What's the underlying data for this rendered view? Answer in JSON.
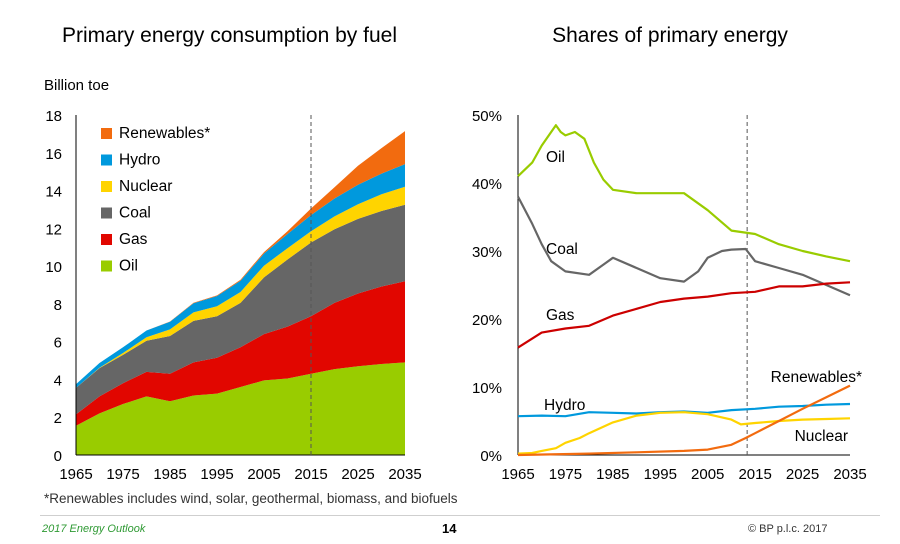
{
  "chart_data": [
    {
      "type": "area",
      "title": "Primary energy consumption by fuel",
      "ylabel": "Billion toe",
      "stacked": true,
      "x": [
        1965,
        1970,
        1975,
        1980,
        1985,
        1990,
        1995,
        2000,
        2005,
        2010,
        2015,
        2020,
        2025,
        2030,
        2035
      ],
      "xticks": [
        1965,
        1975,
        1985,
        1995,
        2005,
        2015,
        2025,
        2035
      ],
      "xlim": [
        1965,
        2035
      ],
      "yticks": [
        0,
        2,
        4,
        6,
        8,
        10,
        12,
        14,
        16,
        18
      ],
      "ylim": [
        0,
        18
      ],
      "projection_start": 2015,
      "legend_position": "top-left",
      "series": [
        {
          "name": "Oil",
          "color": "#99cc00",
          "values": [
            1.55,
            2.2,
            2.7,
            3.1,
            2.85,
            3.15,
            3.25,
            3.6,
            3.95,
            4.05,
            4.3,
            4.55,
            4.7,
            4.82,
            4.9
          ]
        },
        {
          "name": "Gas",
          "color": "#e10600",
          "values": [
            0.6,
            0.9,
            1.1,
            1.3,
            1.45,
            1.75,
            1.9,
            2.1,
            2.45,
            2.75,
            3.05,
            3.5,
            3.85,
            4.1,
            4.3
          ]
        },
        {
          "name": "Coal",
          "color": "#666666",
          "values": [
            1.4,
            1.5,
            1.5,
            1.65,
            2.0,
            2.2,
            2.2,
            2.35,
            3.0,
            3.55,
            3.9,
            3.9,
            3.95,
            4.0,
            4.05
          ]
        },
        {
          "name": "Nuclear",
          "color": "#ffd400",
          "values": [
            0.0,
            0.02,
            0.1,
            0.18,
            0.35,
            0.45,
            0.52,
            0.58,
            0.62,
            0.6,
            0.6,
            0.68,
            0.78,
            0.88,
            0.95
          ]
        },
        {
          "name": "Hydro",
          "color": "#0099dd",
          "values": [
            0.2,
            0.25,
            0.3,
            0.36,
            0.4,
            0.48,
            0.55,
            0.6,
            0.65,
            0.75,
            0.85,
            0.95,
            1.03,
            1.1,
            1.2
          ]
        },
        {
          "name": "Renewables*",
          "color": "#f26b0f",
          "values": [
            0.0,
            0.0,
            0.0,
            0.0,
            0.02,
            0.03,
            0.03,
            0.05,
            0.07,
            0.15,
            0.35,
            0.6,
            1.0,
            1.35,
            1.75
          ]
        }
      ]
    },
    {
      "type": "line",
      "title": "Shares of primary energy",
      "xticks": [
        1965,
        1975,
        1985,
        1995,
        2005,
        2015,
        2025,
        2035
      ],
      "xlim": [
        1965,
        2035
      ],
      "yticks": [
        0,
        10,
        20,
        30,
        40,
        50
      ],
      "ytick_labels": [
        "0%",
        "10%",
        "20%",
        "30%",
        "40%",
        "50%"
      ],
      "ylim": [
        0,
        50
      ],
      "projection_start": 2015,
      "series": [
        {
          "name": "Oil",
          "color": "#99cc00",
          "x": [
            1965,
            1968,
            1970,
            1973,
            1974,
            1975,
            1977,
            1979,
            1981,
            1983,
            1985,
            1990,
            1995,
            2000,
            2005,
            2010,
            2015,
            2020,
            2025,
            2030,
            2035
          ],
          "values": [
            41,
            43,
            45.5,
            48.5,
            47.5,
            47,
            47.5,
            46.5,
            43,
            40.5,
            39,
            38.5,
            38.5,
            38.5,
            36,
            33,
            32.5,
            31,
            30,
            29.2,
            28.5
          ]
        },
        {
          "name": "Coal",
          "color": "#666666",
          "x": [
            1965,
            1968,
            1970,
            1972,
            1975,
            1980,
            1983,
            1985,
            1990,
            1995,
            2000,
            2003,
            2005,
            2008,
            2010,
            2013,
            2015,
            2020,
            2025,
            2030,
            2035
          ],
          "values": [
            38,
            34,
            31,
            28.5,
            27,
            26.5,
            28,
            29,
            27.5,
            26,
            25.5,
            27,
            29,
            30,
            30.2,
            30.3,
            28.5,
            27.5,
            26.5,
            25,
            23.5
          ]
        },
        {
          "name": "Gas",
          "color": "#cc0000",
          "x": [
            1965,
            1970,
            1975,
            1980,
            1985,
            1990,
            1995,
            2000,
            2005,
            2010,
            2015,
            2020,
            2025,
            2030,
            2035
          ],
          "values": [
            15.8,
            18,
            18.6,
            19,
            20.5,
            21.5,
            22.5,
            23,
            23.3,
            23.8,
            24,
            24.8,
            24.8,
            25.2,
            25.4
          ]
        },
        {
          "name": "Hydro",
          "color": "#0099dd",
          "x": [
            1965,
            1970,
            1975,
            1980,
            1985,
            1990,
            1995,
            2000,
            2005,
            2010,
            2015,
            2020,
            2025,
            2030,
            2035
          ],
          "values": [
            5.7,
            5.8,
            5.7,
            6.3,
            6.2,
            6.1,
            6.3,
            6.4,
            6.2,
            6.6,
            6.8,
            7.1,
            7.2,
            7.4,
            7.5
          ]
        },
        {
          "name": "Nuclear",
          "color": "#ffd400",
          "x": [
            1965,
            1968,
            1970,
            1973,
            1975,
            1978,
            1980,
            1985,
            1990,
            1995,
            2000,
            2005,
            2010,
            2012,
            2015,
            2020,
            2025,
            2030,
            2035
          ],
          "values": [
            0.2,
            0.3,
            0.6,
            1.0,
            1.8,
            2.5,
            3.2,
            4.8,
            5.8,
            6.2,
            6.3,
            6.0,
            5.2,
            4.5,
            4.7,
            5.0,
            5.2,
            5.3,
            5.4
          ]
        },
        {
          "name": "Renewables*",
          "color": "#f26b0f",
          "x": [
            1965,
            1980,
            1990,
            2000,
            2005,
            2010,
            2013,
            2015,
            2020,
            2025,
            2030,
            2035
          ],
          "values": [
            0.0,
            0.2,
            0.4,
            0.6,
            0.8,
            1.5,
            2.5,
            3.2,
            5.0,
            6.8,
            8.5,
            10.2
          ]
        }
      ],
      "series_labels": [
        "Oil",
        "Coal",
        "Gas",
        "Hydro",
        "Nuclear",
        "Renewables*"
      ]
    }
  ],
  "page": {
    "left_title": "Primary energy consumption by fuel",
    "right_title": "Shares of primary energy",
    "unit_label": "Billion toe",
    "footnote": "*Renewables includes wind, solar, geothermal, biomass, and biofuels",
    "report_name": "2017 Energy Outlook",
    "page_number": "14",
    "copyright": "© BP p.l.c. 2017"
  }
}
